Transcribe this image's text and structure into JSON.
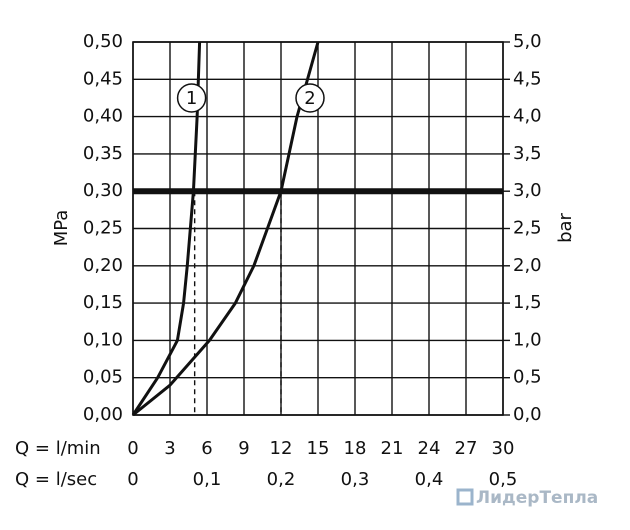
{
  "chart_data": {
    "type": "line",
    "x_label": "Q = l/min",
    "x2_label": "Q = l/sec",
    "y_label": "MPa",
    "y2_label": "bar",
    "watermark": "ЛидерТепла",
    "xlim": [
      0,
      30
    ],
    "xticks": [
      0,
      3,
      6,
      9,
      12,
      15,
      18,
      21,
      24,
      27,
      30
    ],
    "x2lim": [
      0,
      0.5
    ],
    "x2ticks": [
      0,
      {
        "value": 0.1,
        "label": "0,1"
      },
      {
        "value": 0.2,
        "label": "0,2"
      },
      {
        "value": 0.3,
        "label": "0,3"
      },
      {
        "value": 0.4,
        "label": "0,4"
      },
      {
        "value": 0.5,
        "label": "0,5"
      }
    ],
    "ylim": [
      0,
      0.5
    ],
    "yticks": [
      {
        "value": 0,
        "label": "0,00"
      },
      {
        "value": 0.05,
        "label": "0,05"
      },
      {
        "value": 0.1,
        "label": "0,10"
      },
      {
        "value": 0.15,
        "label": "0,15"
      },
      {
        "value": 0.2,
        "label": "0,20"
      },
      {
        "value": 0.25,
        "label": "0,25"
      },
      {
        "value": 0.3,
        "label": "0,30"
      },
      {
        "value": 0.35,
        "label": "0,35"
      },
      {
        "value": 0.4,
        "label": "0,40"
      },
      {
        "value": 0.45,
        "label": "0,45"
      },
      {
        "value": 0.5,
        "label": "0,50"
      }
    ],
    "y2lim": [
      0,
      5
    ],
    "y2ticks": [
      {
        "value": 0,
        "label": "0,0"
      },
      {
        "value": 0.5,
        "label": "0,5"
      },
      {
        "value": 1,
        "label": "1,0"
      },
      {
        "value": 1.5,
        "label": "1,5"
      },
      {
        "value": 2,
        "label": "2,0"
      },
      {
        "value": 2.5,
        "label": "2,5"
      },
      {
        "value": 3,
        "label": "3,0"
      },
      {
        "value": 3.5,
        "label": "3,5"
      },
      {
        "value": 4,
        "label": "4,0"
      },
      {
        "value": 4.5,
        "label": "4,5"
      },
      {
        "value": 5,
        "label": "5,0"
      }
    ],
    "grid": true,
    "threshold": 0.3,
    "markers": [
      {
        "x": 5,
        "y": 0.3
      },
      {
        "x": 12,
        "y": 0.3
      }
    ],
    "series": [
      {
        "name": "1",
        "color": "#111111",
        "x": [
          0,
          2,
          3.6,
          4.1,
          4.4,
          4.9,
          5.2,
          5.4
        ],
        "values": [
          0,
          0.05,
          0.1,
          0.15,
          0.2,
          0.3,
          0.4,
          0.5
        ]
      },
      {
        "name": "2",
        "color": "#111111",
        "x": [
          0,
          3,
          6.2,
          8.3,
          9.8,
          10.9,
          12,
          13.3,
          15
        ],
        "values": [
          0,
          0.04,
          0.1,
          0.15,
          0.2,
          0.25,
          0.3,
          0.4,
          0.5
        ]
      }
    ]
  }
}
